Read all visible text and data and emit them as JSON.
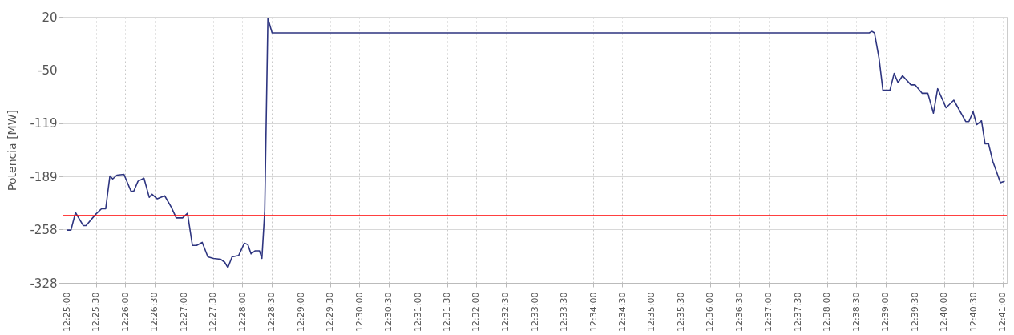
{
  "chart_data": {
    "type": "line",
    "ylabel": "Potencia [MW]",
    "xlim": [
      12.4155,
      12.6845
    ],
    "ylim": [
      -328,
      20
    ],
    "yticks": [
      20,
      -50,
      -119,
      -189,
      -258,
      -328
    ],
    "xticks": [
      {
        "value": 12.41667,
        "label": "12:25:00"
      },
      {
        "value": 12.425,
        "label": "12:25:30"
      },
      {
        "value": 12.43333,
        "label": "12:26:00"
      },
      {
        "value": 12.44167,
        "label": "12:26:30"
      },
      {
        "value": 12.45,
        "label": "12:27:00"
      },
      {
        "value": 12.45833,
        "label": "12:27:30"
      },
      {
        "value": 12.46667,
        "label": "12:28:00"
      },
      {
        "value": 12.475,
        "label": "12:28:30"
      },
      {
        "value": 12.48333,
        "label": "12:29:00"
      },
      {
        "value": 12.49167,
        "label": "12:29:30"
      },
      {
        "value": 12.5,
        "label": "12:30:00"
      },
      {
        "value": 12.50833,
        "label": "12:30:30"
      },
      {
        "value": 12.51667,
        "label": "12:31:00"
      },
      {
        "value": 12.525,
        "label": "12:31:30"
      },
      {
        "value": 12.53333,
        "label": "12:32:00"
      },
      {
        "value": 12.54167,
        "label": "12:32:30"
      },
      {
        "value": 12.55,
        "label": "12:33:00"
      },
      {
        "value": 12.55833,
        "label": "12:33:30"
      },
      {
        "value": 12.56667,
        "label": "12:34:00"
      },
      {
        "value": 12.575,
        "label": "12:34:30"
      },
      {
        "value": 12.58333,
        "label": "12:35:00"
      },
      {
        "value": 12.59167,
        "label": "12:35:30"
      },
      {
        "value": 12.6,
        "label": "12:36:00"
      },
      {
        "value": 12.60833,
        "label": "12:36:30"
      },
      {
        "value": 12.61667,
        "label": "12:37:00"
      },
      {
        "value": 12.625,
        "label": "12:37:30"
      },
      {
        "value": 12.63333,
        "label": "12:38:00"
      },
      {
        "value": 12.64167,
        "label": "12:38:30"
      },
      {
        "value": 12.65,
        "label": "12:39:00"
      },
      {
        "value": 12.65833,
        "label": "12:39:30"
      },
      {
        "value": 12.66667,
        "label": "12:40:00"
      },
      {
        "value": 12.675,
        "label": "12:40:30"
      },
      {
        "value": 12.68333,
        "label": "12:41:00"
      }
    ],
    "grid": true,
    "line_style": "solid",
    "marker": "none",
    "x": [
      12.4167,
      12.4179,
      12.4192,
      12.4214,
      12.4222,
      12.425,
      12.4266,
      12.4278,
      12.429,
      12.4298,
      12.431,
      12.433,
      12.435,
      12.4358,
      12.437,
      12.4387,
      12.4402,
      12.441,
      12.4425,
      12.4446,
      12.4465,
      12.4479,
      12.4497,
      12.4511,
      12.4525,
      12.4537,
      12.4553,
      12.4569,
      12.4585,
      12.4605,
      12.4617,
      12.4626,
      12.4638,
      12.4657,
      12.4673,
      12.4683,
      12.4692,
      12.4704,
      12.4716,
      12.4723,
      12.4731,
      12.474,
      12.4752,
      12.6453,
      12.6461,
      12.6468,
      12.6481,
      12.6492,
      12.6512,
      12.6524,
      12.6535,
      12.6548,
      12.6572,
      12.6584,
      12.6604,
      12.662,
      12.6636,
      12.6648,
      12.6672,
      12.6694,
      12.6728,
      12.6737,
      12.6749,
      12.6759,
      12.6773,
      12.6783,
      12.6793,
      12.6805,
      12.6827,
      12.6839
    ],
    "series": [
      {
        "color": "#2e3580",
        "values": [
          -259,
          -259,
          -236,
          -253,
          -253,
          -238,
          -231,
          -231,
          -188,
          -192,
          -187,
          -186,
          -208,
          -208,
          -195,
          -191,
          -216,
          -212,
          -218,
          -214,
          -229,
          -243,
          -243,
          -237,
          -279,
          -279,
          -275,
          -294,
          -296,
          -297,
          -301,
          -308,
          -294,
          -292,
          -276,
          -278,
          -290,
          -286,
          -286,
          -296,
          -234,
          18,
          -1,
          -1,
          1,
          -1,
          -34,
          -76,
          -76,
          -54,
          -66,
          -57,
          -69,
          -69,
          -80,
          -80,
          -106,
          -74,
          -99,
          -89,
          -117,
          -117,
          -104,
          -121,
          -116,
          -146,
          -146,
          -169,
          -197,
          -195
        ]
      }
    ],
    "ref_lines": [
      {
        "axis": "y",
        "value": -240,
        "color": "#ff0000"
      }
    ]
  }
}
